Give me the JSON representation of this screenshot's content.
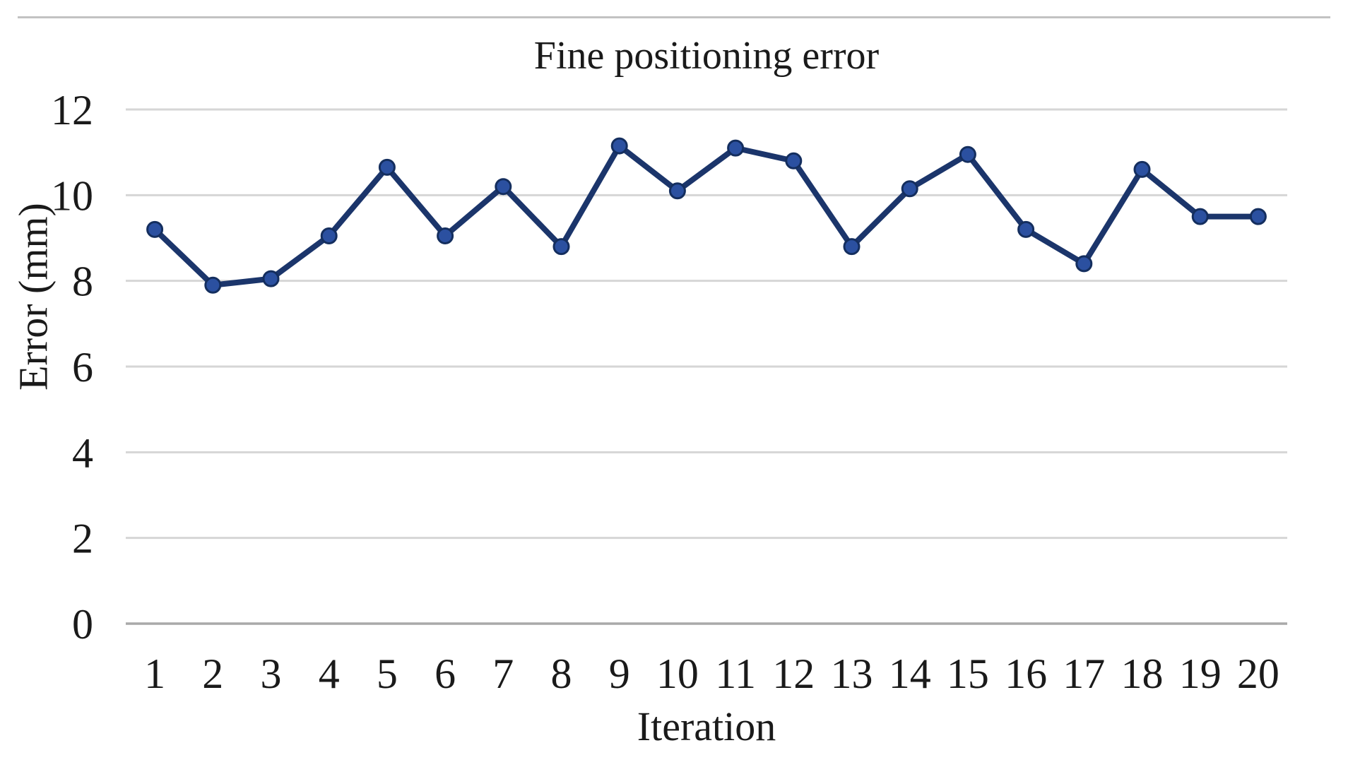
{
  "chart_data": {
    "type": "line",
    "title": "Fine positioning error",
    "xlabel": "Iteration",
    "ylabel": "Error (mm)",
    "categories": [
      1,
      2,
      3,
      4,
      5,
      6,
      7,
      8,
      9,
      10,
      11,
      12,
      13,
      14,
      15,
      16,
      17,
      18,
      19,
      20
    ],
    "series": [
      {
        "name": "Fine positioning error",
        "values": [
          9.2,
          7.9,
          8.05,
          9.05,
          10.65,
          9.05,
          10.2,
          8.8,
          11.15,
          10.1,
          11.1,
          10.8,
          8.8,
          10.15,
          10.95,
          9.2,
          8.4,
          10.6,
          9.5,
          9.5
        ]
      }
    ],
    "ylim": [
      0,
      12
    ],
    "yticks": [
      0,
      2,
      4,
      6,
      8,
      10,
      12
    ],
    "grid": "horizontal",
    "legend": "none",
    "line_color": "#1b356b",
    "marker_shape": "circle",
    "marker_fill": "#2b50a0",
    "marker_stroke": "#142e5e",
    "gridline_color": "#d6d6d6",
    "axis_line_color": "#a9a9a9",
    "top_rule_color": "#c2c2c2",
    "text_color": "#1a1a1a"
  }
}
